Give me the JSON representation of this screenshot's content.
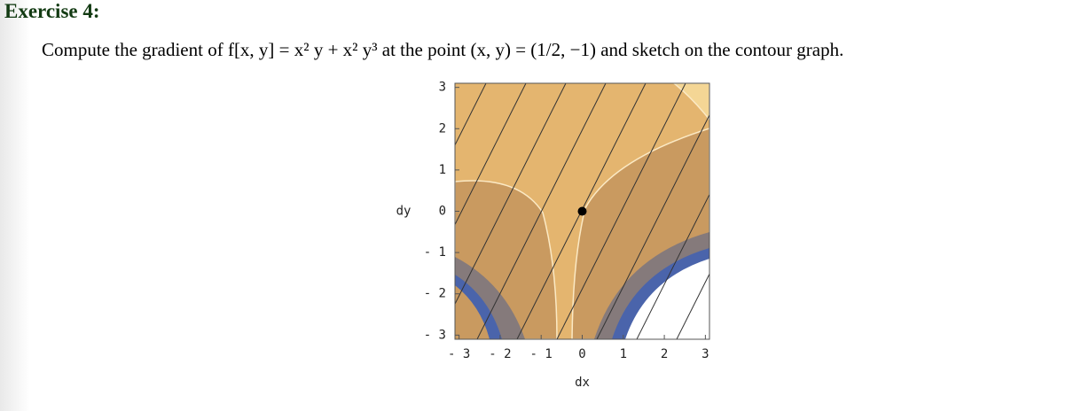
{
  "title": "Exercise 4:",
  "problem": "Compute the gradient of f[x, y] = x² y + x² y³ at the point (x, y) = (1/2, −1) and sketch on the contour graph.",
  "plot": {
    "xlabel": "dx",
    "ylabel": "dy",
    "xlim": [
      -3.1,
      3.1
    ],
    "ylim": [
      -3.1,
      3.1
    ],
    "xticks": [
      {
        "value": -3,
        "label": "- 3"
      },
      {
        "value": -2,
        "label": "- 2"
      },
      {
        "value": -1,
        "label": "- 1"
      },
      0,
      1,
      2,
      3
    ],
    "yticks": [
      {
        "value": -3,
        "label": "- 3"
      },
      {
        "value": -2,
        "label": "- 2"
      },
      {
        "value": -1,
        "label": "- 1"
      },
      0,
      1,
      2,
      3
    ],
    "point": [
      0,
      0
    ]
  }
}
